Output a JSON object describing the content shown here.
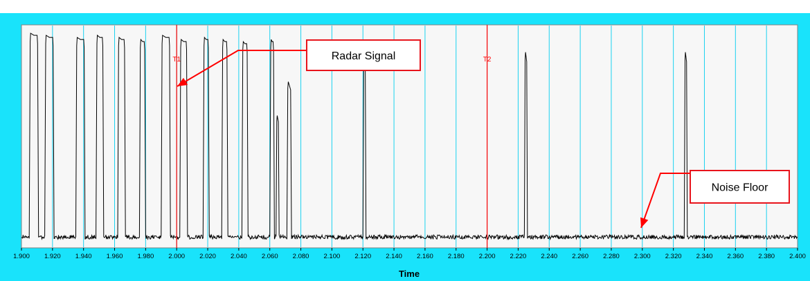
{
  "chart_data": {
    "type": "line",
    "xlabel": "Time",
    "xlim": [
      1.9,
      2.4
    ],
    "ylim": [
      0,
      1
    ],
    "x_ticks": [
      "1.900",
      "1.920",
      "1.940",
      "1.960",
      "1.980",
      "2.000",
      "2.020",
      "2.040",
      "2.060",
      "2.080",
      "2.100",
      "2.120",
      "2.140",
      "2.160",
      "2.180",
      "2.200",
      "2.220",
      "2.240",
      "2.260",
      "2.280",
      "2.300",
      "2.320",
      "2.340",
      "2.360",
      "2.380",
      "2.400"
    ],
    "grid": true,
    "noise_level": 0.02,
    "pulses": [
      {
        "start": 1.905,
        "end": 1.911,
        "peak": 0.99
      },
      {
        "start": 1.915,
        "end": 1.921,
        "peak": 0.98
      },
      {
        "start": 1.935,
        "end": 1.941,
        "peak": 0.97
      },
      {
        "start": 1.948,
        "end": 1.953,
        "peak": 0.98
      },
      {
        "start": 1.962,
        "end": 1.967,
        "peak": 0.97
      },
      {
        "start": 1.976,
        "end": 1.98,
        "peak": 0.96
      },
      {
        "start": 1.99,
        "end": 1.996,
        "peak": 0.98
      },
      {
        "start": 2.002,
        "end": 2.007,
        "peak": 0.96
      },
      {
        "start": 2.017,
        "end": 2.021,
        "peak": 0.97
      },
      {
        "start": 2.029,
        "end": 2.033,
        "peak": 0.96
      },
      {
        "start": 2.042,
        "end": 2.046,
        "peak": 0.95
      },
      {
        "start": 2.06,
        "end": 2.063,
        "peak": 0.96
      },
      {
        "start": 2.064,
        "end": 2.066,
        "peak": 0.6
      },
      {
        "start": 2.071,
        "end": 2.074,
        "peak": 0.76
      },
      {
        "start": 2.12,
        "end": 2.122,
        "peak": 0.9
      },
      {
        "start": 2.224,
        "end": 2.226,
        "peak": 0.9
      },
      {
        "start": 2.327,
        "end": 2.329,
        "peak": 0.9
      }
    ],
    "cursors": [
      {
        "label": "T1",
        "x": 2.0,
        "color": "#ff0000"
      },
      {
        "label": "T2",
        "x": 2.2,
        "color": "#ff0000"
      }
    ],
    "annotations": [
      {
        "text": "Radar Signal",
        "target_x": 2.0,
        "target_y": 0.78
      },
      {
        "text": "Noise Floor",
        "target_x": 2.299,
        "target_y": 0.04
      }
    ]
  }
}
